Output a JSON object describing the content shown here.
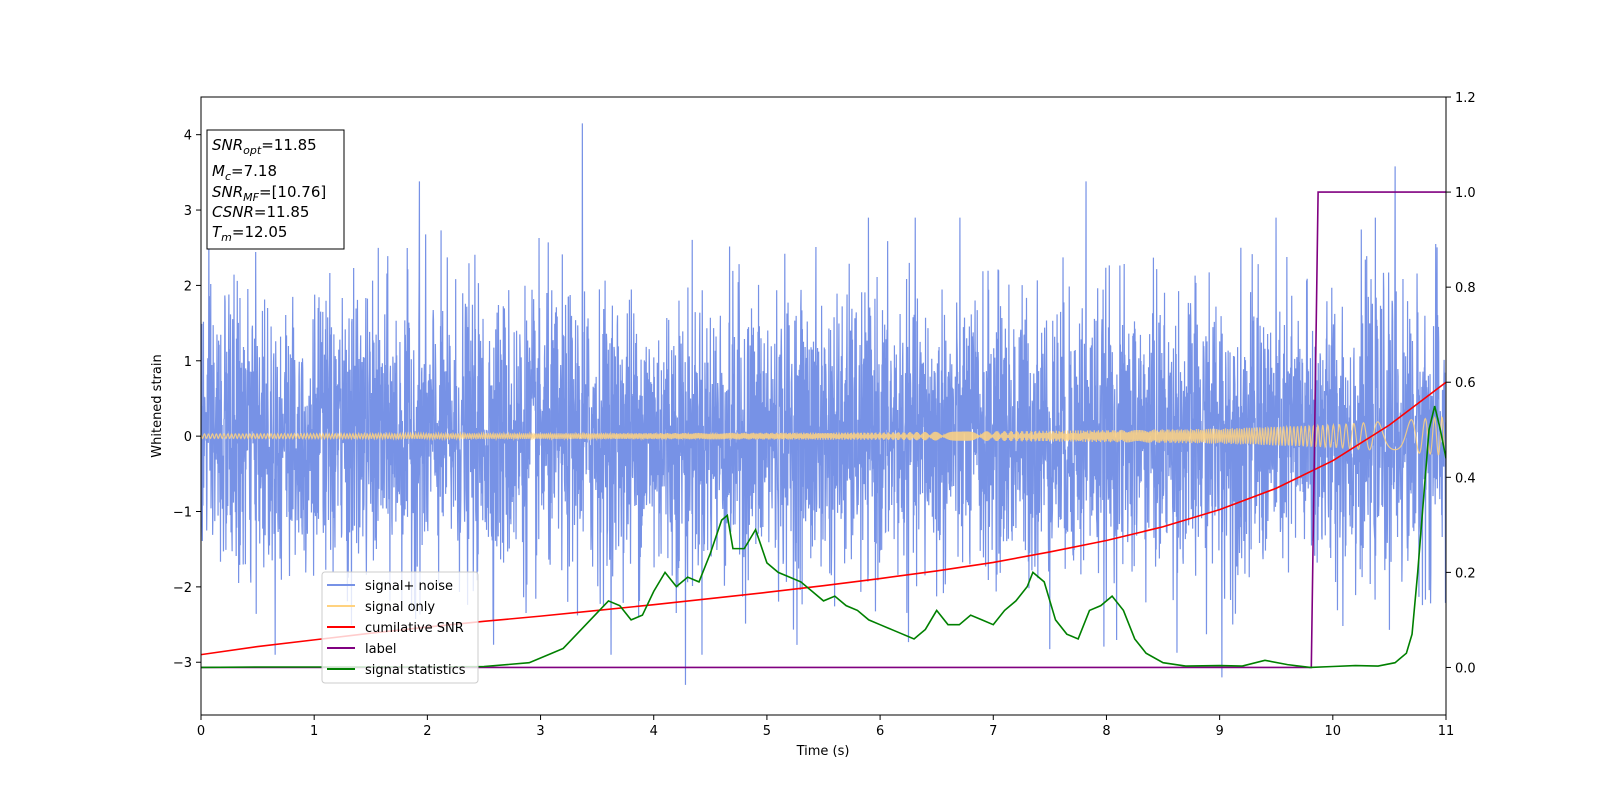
{
  "chart_data": {
    "type": "line",
    "xlabel": "Time (s)",
    "ylabel": "Whitened strain",
    "xlim": [
      0,
      11
    ],
    "ylim_left": [
      -3.7,
      4.5
    ],
    "ylim_right": [
      -0.1,
      1.2
    ],
    "x_ticks": [
      "0",
      "1",
      "2",
      "3",
      "4",
      "5",
      "6",
      "7",
      "8",
      "9",
      "10",
      "11"
    ],
    "y_left_ticks": [
      "−3",
      "−2",
      "−1",
      "0",
      "1",
      "2",
      "3",
      "4"
    ],
    "y_right_ticks": [
      "0.0",
      "0.2",
      "0.4",
      "0.6",
      "0.8",
      "1.0",
      "1.2"
    ],
    "annotation": {
      "lines": [
        {
          "base": "SNR",
          "sub": "opt",
          "value": "=11.85"
        },
        {
          "base": "M",
          "sub": "c",
          "value": "=7.18"
        },
        {
          "base": "SNR",
          "sub": "MF",
          "value": "=[10.76]"
        },
        {
          "base": "CSNR",
          "sub": "",
          "value": "=11.85"
        },
        {
          "base": "T",
          "sub": "m",
          "value": "=12.05"
        }
      ]
    },
    "legend": {
      "placement": "lower-left",
      "entries": [
        {
          "label": "signal+ noise",
          "color": "#7792e6"
        },
        {
          "label": "signal only",
          "color": "#ffd27f"
        },
        {
          "label": "cumilative SNR",
          "color": "#ff0000"
        },
        {
          "label": "label",
          "color": "#800080"
        },
        {
          "label": "signal statistics",
          "color": "#008000"
        }
      ]
    },
    "series": [
      {
        "name": "signal+ noise",
        "axis": "left",
        "kind": "noise",
        "color": "#7792e6",
        "std": 0.92,
        "notable_peaks": [
          [
            3.37,
            4.15
          ],
          [
            4.28,
            -3.3
          ],
          [
            1.93,
            3.38
          ],
          [
            7.82,
            3.38
          ],
          [
            10.55,
            3.58
          ],
          [
            9.02,
            -3.2
          ]
        ]
      },
      {
        "name": "signal only",
        "axis": "left",
        "kind": "chirp",
        "color": "#ffd27f",
        "envelope": [
          [
            0,
            0.03
          ],
          [
            2,
            0.035
          ],
          [
            4,
            0.04
          ],
          [
            6,
            0.05
          ],
          [
            8,
            0.08
          ],
          [
            9,
            0.1
          ],
          [
            10,
            0.15
          ],
          [
            10.8,
            0.23
          ],
          [
            11,
            0.26
          ]
        ]
      },
      {
        "name": "cumilative SNR",
        "axis": "right",
        "color": "#ff0000",
        "x": [
          0,
          0.5,
          1,
          1.5,
          2,
          2.5,
          3,
          3.5,
          4,
          4.5,
          5,
          5.5,
          6,
          6.5,
          7,
          7.5,
          8,
          8.5,
          9,
          9.5,
          10,
          10.5,
          11
        ],
        "y": [
          0.027,
          0.044,
          0.058,
          0.072,
          0.085,
          0.097,
          0.108,
          0.12,
          0.132,
          0.145,
          0.158,
          0.172,
          0.187,
          0.203,
          0.221,
          0.243,
          0.267,
          0.296,
          0.332,
          0.377,
          0.435,
          0.51,
          0.6
        ]
      },
      {
        "name": "label",
        "axis": "right",
        "color": "#800080",
        "x": [
          0,
          9.81,
          9.87,
          11
        ],
        "y": [
          0.0,
          0.0,
          1.0,
          1.0
        ]
      },
      {
        "name": "signal statistics",
        "axis": "right",
        "color": "#008000",
        "x": [
          0,
          0.5,
          1,
          1.5,
          2,
          2.5,
          2.9,
          3.1,
          3.2,
          3.4,
          3.6,
          3.7,
          3.8,
          3.9,
          4.0,
          4.1,
          4.2,
          4.3,
          4.4,
          4.5,
          4.6,
          4.65,
          4.7,
          4.8,
          4.9,
          5.0,
          5.1,
          5.2,
          5.3,
          5.4,
          5.5,
          5.6,
          5.7,
          5.8,
          5.9,
          6.0,
          6.1,
          6.2,
          6.3,
          6.4,
          6.5,
          6.6,
          6.7,
          6.8,
          6.9,
          7.0,
          7.1,
          7.2,
          7.3,
          7.35,
          7.45,
          7.55,
          7.65,
          7.75,
          7.85,
          7.95,
          8.05,
          8.15,
          8.25,
          8.35,
          8.5,
          8.7,
          9.0,
          9.2,
          9.4,
          9.6,
          9.8,
          10.0,
          10.2,
          10.4,
          10.55,
          10.65,
          10.7,
          10.75,
          10.8,
          10.85,
          10.9,
          10.95,
          11.0
        ],
        "y": [
          0.0,
          0.001,
          0.001,
          0.001,
          0.001,
          0.002,
          0.01,
          0.03,
          0.04,
          0.09,
          0.14,
          0.13,
          0.1,
          0.11,
          0.16,
          0.2,
          0.17,
          0.19,
          0.18,
          0.24,
          0.31,
          0.32,
          0.25,
          0.25,
          0.29,
          0.22,
          0.2,
          0.19,
          0.18,
          0.16,
          0.14,
          0.15,
          0.13,
          0.12,
          0.1,
          0.09,
          0.08,
          0.07,
          0.06,
          0.08,
          0.12,
          0.09,
          0.09,
          0.11,
          0.1,
          0.09,
          0.12,
          0.14,
          0.17,
          0.2,
          0.18,
          0.1,
          0.07,
          0.06,
          0.12,
          0.13,
          0.15,
          0.12,
          0.06,
          0.03,
          0.01,
          0.003,
          0.004,
          0.003,
          0.015,
          0.006,
          0.0,
          0.002,
          0.004,
          0.003,
          0.01,
          0.03,
          0.07,
          0.2,
          0.35,
          0.5,
          0.55,
          0.5,
          0.44
        ]
      }
    ]
  }
}
